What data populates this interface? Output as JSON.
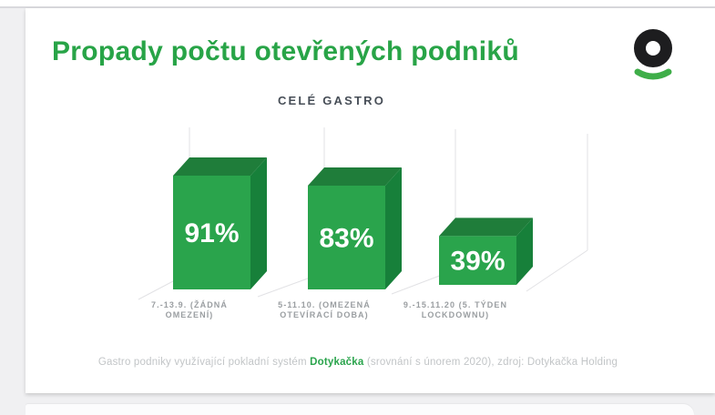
{
  "slide": {
    "title": "Propady počtu otevřených podniků",
    "subtitle": "CELÉ GASTRO",
    "footer": {
      "pre": "Gastro podniky využívající pokladní systém ",
      "brand": "Dotykačka",
      "post": " (srovnání s únorem 2020), zdroj: Dotykačka Holding"
    }
  },
  "colors": {
    "title_green": "#28a447",
    "brand_green": "#2aa44c",
    "bar_front": "#2aa44c",
    "bar_top": "#1f7d3a",
    "bar_side": "#17803a",
    "subtitle_gray": "#474e57",
    "axis_label_gray": "#9a9ea1",
    "footer_gray": "#c2c5c7",
    "gridline_gray": "#e2e2e5",
    "logo_black": "#1d1d1f",
    "logo_smile_green": "#3fae49"
  },
  "chart_data": {
    "type": "bar",
    "title": "CELÉ GASTRO",
    "categories": [
      "7.-13.9. (ŽÁDNÁ OMEZENÍ)",
      "5-11.10. (OMEZENÁ OTEVÍRACÍ DOBA)",
      "9.-15.11.20 (5. TÝDEN LOCKDOWNU)"
    ],
    "label_lines": [
      [
        "7.-13.9. (ŽÁDNÁ",
        "OMEZENÍ)"
      ],
      [
        "5-11.10. (OMEZENÁ",
        "OTEVÍRACÍ DOBA)"
      ],
      [
        "9.-15.11.20 (5. TÝDEN",
        "LOCKDOWNU)"
      ]
    ],
    "values": [
      91,
      83,
      39
    ],
    "value_labels": [
      "91%",
      "83%",
      "39%"
    ],
    "unit": "%",
    "xlabel": "",
    "ylabel": "",
    "ylim": [
      0,
      100
    ],
    "legend": "none",
    "grid": "sparse-3d-perspective-lines",
    "style": "3d-green-cuboid-bars-on-white-slide"
  }
}
